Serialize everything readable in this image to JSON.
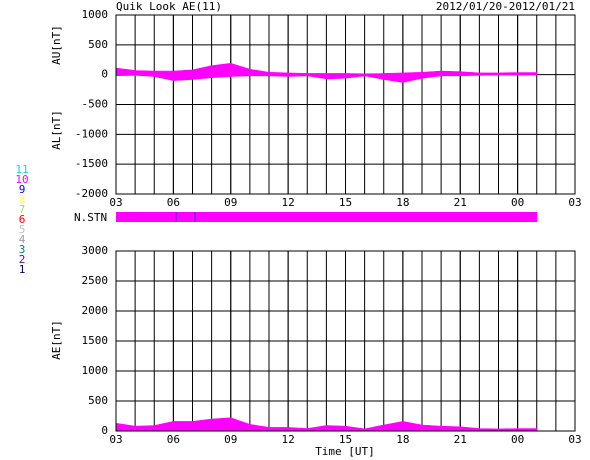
{
  "chart_data": [
    {
      "type": "area",
      "title": "Quik Look AE(11)",
      "subtitle": "2012/01/20-2012/01/21",
      "x": [
        0,
        1,
        2,
        3,
        4,
        5,
        6,
        7,
        8,
        9,
        10,
        11,
        12,
        13,
        14,
        15,
        16,
        17,
        18,
        19,
        20,
        21,
        22
      ],
      "series": [
        {
          "name": "AU[nT]",
          "color": "#ff00ff",
          "values": [
            110,
            70,
            60,
            60,
            80,
            150,
            190,
            90,
            40,
            30,
            20,
            20,
            20,
            15,
            20,
            30,
            40,
            60,
            50,
            30,
            30,
            35,
            35
          ]
        },
        {
          "name": "AL[nT]",
          "color": "#ff00ff",
          "values": [
            -20,
            -10,
            -30,
            -100,
            -80,
            -50,
            -30,
            -20,
            -20,
            -30,
            -20,
            -70,
            -60,
            -20,
            -80,
            -130,
            -60,
            -20,
            -20,
            -10,
            -5,
            -5,
            -5
          ]
        }
      ],
      "xlim": [
        0,
        24
      ],
      "xticks": [
        {
          "value": 0,
          "label": "03"
        },
        {
          "value": 3,
          "label": "06"
        },
        {
          "value": 6,
          "label": "09"
        },
        {
          "value": 9,
          "label": "12"
        },
        {
          "value": 12,
          "label": "15"
        },
        {
          "value": 15,
          "label": "18"
        },
        {
          "value": 18,
          "label": "21"
        },
        {
          "value": 21,
          "label": "00"
        },
        {
          "value": 24,
          "label": "03"
        }
      ],
      "ylim": [
        -2000,
        1000
      ],
      "yticks": [
        -2000,
        -1500,
        -1000,
        -500,
        0,
        500,
        1000
      ],
      "grid": true
    },
    {
      "type": "area",
      "x": [
        0,
        1,
        2,
        3,
        4,
        5,
        6,
        7,
        8,
        9,
        10,
        11,
        12,
        13,
        14,
        15,
        16,
        17,
        18,
        19,
        20,
        21,
        22
      ],
      "series": [
        {
          "name": "AE[nT]",
          "color": "#ff00ff",
          "values": [
            130,
            80,
            90,
            160,
            160,
            200,
            220,
            110,
            60,
            60,
            40,
            90,
            80,
            35,
            100,
            160,
            100,
            80,
            70,
            40,
            35,
            40,
            40
          ]
        }
      ],
      "xlim": [
        0,
        24
      ],
      "xticks": [
        {
          "value": 0,
          "label": "03"
        },
        {
          "value": 3,
          "label": "06"
        },
        {
          "value": 6,
          "label": "09"
        },
        {
          "value": 9,
          "label": "12"
        },
        {
          "value": 12,
          "label": "15"
        },
        {
          "value": 15,
          "label": "18"
        },
        {
          "value": 18,
          "label": "21"
        },
        {
          "value": 21,
          "label": "00"
        },
        {
          "value": 24,
          "label": "03"
        }
      ],
      "xlabel": "Time [UT]",
      "ylim": [
        0,
        3000
      ],
      "yticks": [
        0,
        500,
        1000,
        1500,
        2000,
        2500,
        3000
      ],
      "grid": true
    }
  ],
  "station_bar": {
    "label": "N.STN",
    "color": "#ff00ff"
  },
  "station_legend": [
    {
      "label": "11",
      "color": "#00e0e0"
    },
    {
      "label": "10",
      "color": "#ff00ff"
    },
    {
      "label": "9",
      "color": "#0000ff"
    },
    {
      "label": "8",
      "color": "#ffff60"
    },
    {
      "label": "7",
      "color": "#a0e060"
    },
    {
      "label": "6",
      "color": "#ff0000"
    },
    {
      "label": "5",
      "color": "#c0c0c0"
    },
    {
      "label": "4",
      "color": "#a0a0a0"
    },
    {
      "label": "3",
      "color": "#008080"
    },
    {
      "label": "2",
      "color": "#800080"
    },
    {
      "label": "1",
      "color": "#000080"
    }
  ]
}
